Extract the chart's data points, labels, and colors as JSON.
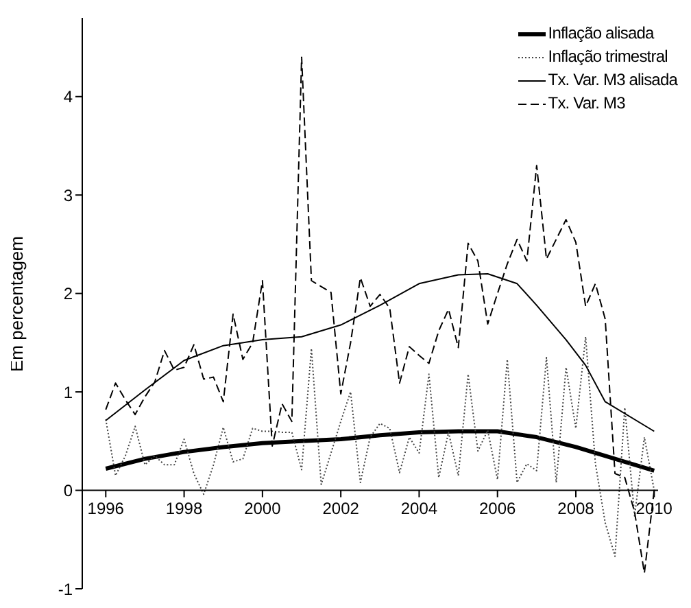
{
  "chart_data": {
    "type": "line",
    "ylabel": "Em percentagem",
    "x": [
      1996,
      1996.25,
      1996.5,
      1996.75,
      1997,
      1997.25,
      1997.5,
      1997.75,
      1998,
      1998.25,
      1998.5,
      1998.75,
      1999,
      1999.25,
      1999.5,
      1999.75,
      2000,
      2000.25,
      2000.5,
      2000.75,
      2001,
      2001.25,
      2001.5,
      2001.75,
      2002,
      2002.25,
      2002.5,
      2002.75,
      2003,
      2003.25,
      2003.5,
      2003.75,
      2004,
      2004.25,
      2004.5,
      2004.75,
      2005,
      2005.25,
      2005.5,
      2005.75,
      2006,
      2006.25,
      2006.5,
      2006.75,
      2007,
      2007.25,
      2007.5,
      2007.75,
      2008,
      2008.25,
      2008.5,
      2008.75,
      2009,
      2009.25,
      2009.5,
      2009.75,
      2010
    ],
    "series": [
      {
        "name": "Inflação alisada",
        "color": "#000000",
        "line_style": "solid",
        "x": [
          1996,
          1997,
          1998,
          1999,
          2000,
          2001,
          2002,
          2003,
          2004,
          2005,
          2006,
          2007,
          2008,
          2009,
          2010
        ],
        "values": [
          0.22,
          0.32,
          0.39,
          0.44,
          0.48,
          0.5,
          0.52,
          0.56,
          0.59,
          0.6,
          0.6,
          0.54,
          0.44,
          0.32,
          0.2
        ]
      },
      {
        "name": "Inflação trimestral",
        "color": "#444444",
        "line_style": "dotted",
        "values": [
          0.72,
          0.15,
          0.35,
          0.65,
          0.26,
          0.35,
          0.26,
          0.26,
          0.52,
          0.17,
          -0.04,
          0.26,
          0.64,
          0.29,
          0.32,
          0.63,
          0.6,
          0.6,
          0.59,
          0.59,
          0.21,
          1.44,
          0.06,
          0.38,
          0.7,
          1.0,
          0.08,
          0.54,
          0.68,
          0.63,
          0.18,
          0.54,
          0.38,
          1.18,
          0.13,
          0.59,
          0.15,
          1.18,
          0.4,
          0.61,
          0.11,
          1.33,
          0.08,
          0.27,
          0.2,
          1.35,
          0.08,
          1.25,
          0.63,
          1.56,
          0.27,
          -0.33,
          -0.67,
          0.84,
          -0.26,
          0.54,
          0
        ]
      },
      {
        "name": "Tx. Var. M3 alisada",
        "color": "#000000",
        "line_style": "solid",
        "x": [
          1996,
          1997,
          1998,
          1999,
          2000,
          2001,
          2002,
          2003,
          2004,
          2005,
          2005.75,
          2006.5,
          2007,
          2007.75,
          2008.25,
          2008.75,
          2010
        ],
        "values": [
          0.71,
          1.02,
          1.32,
          1.47,
          1.53,
          1.56,
          1.68,
          1.88,
          2.1,
          2.19,
          2.2,
          2.1,
          1.88,
          1.53,
          1.27,
          0.9,
          0.6
        ]
      },
      {
        "name": "Tx. Var. M3",
        "color": "#000000",
        "line_style": "dashed",
        "values": [
          0.82,
          1.09,
          0.92,
          0.77,
          0.95,
          1.1,
          1.42,
          1.22,
          1.25,
          1.48,
          1.13,
          1.15,
          0.9,
          1.79,
          1.33,
          1.5,
          2.13,
          0.45,
          0.88,
          0.7,
          4.4,
          2.13,
          2.07,
          2.01,
          0.98,
          1.5,
          2.16,
          1.87,
          1.99,
          1.85,
          1.09,
          1.46,
          1.37,
          1.29,
          1.62,
          1.84,
          1.45,
          2.51,
          2.33,
          1.69,
          2.0,
          2.3,
          2.55,
          2.33,
          3.3,
          2.35,
          2.55,
          2.75,
          2.52,
          1.87,
          2.1,
          1.74,
          0.17,
          0.13,
          -0.22,
          -0.84,
          0
        ]
      }
    ],
    "xlim": [
      1995.4,
      2010.1
    ],
    "xticks": [
      1996,
      1998,
      2000,
      2002,
      2004,
      2006,
      2008,
      2010
    ],
    "ylim": [
      -1,
      4.8
    ],
    "yticks": [
      -1,
      0,
      1,
      2,
      3,
      4
    ],
    "legend": "top right",
    "marker": "none",
    "grid": false
  }
}
